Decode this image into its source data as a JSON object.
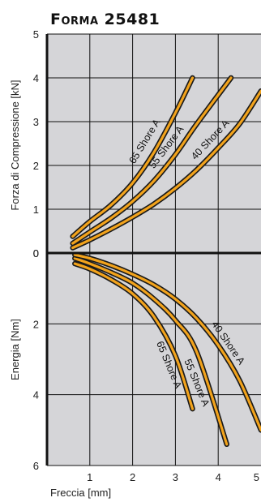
{
  "colors": {
    "panel": "#d5d5d8",
    "grid": "#111111",
    "curve": "#f2a31c",
    "outline": "#1a1a1a"
  },
  "chart_data": [
    {
      "type": "line",
      "title": "Forma 25481",
      "xlabel": "Freccia  [mm]",
      "ylabel": "Forza di Compressione [kN]",
      "xlim": [
        0,
        5
      ],
      "ylim": [
        0,
        5
      ],
      "x_ticks": [
        "1",
        "2",
        "3",
        "4",
        "5"
      ],
      "y_ticks": [
        "0",
        "1",
        "2",
        "3",
        "4",
        "5"
      ],
      "grid": true,
      "series": [
        {
          "name": "65 Shore A",
          "x": [
            0.6,
            1,
            1.5,
            2,
            2.5,
            3,
            3.4
          ],
          "y": [
            0.38,
            0.72,
            1.1,
            1.6,
            2.3,
            3.2,
            4.0
          ]
        },
        {
          "name": "55 Shore A",
          "x": [
            0.6,
            1,
            1.5,
            2,
            2.5,
            3,
            3.5,
            4.3
          ],
          "y": [
            0.22,
            0.48,
            0.8,
            1.18,
            1.65,
            2.25,
            2.95,
            4.0
          ]
        },
        {
          "name": "40 Shore A",
          "x": [
            0.6,
            1,
            1.5,
            2,
            2.5,
            3,
            3.5,
            4,
            4.5,
            5.0
          ],
          "y": [
            0.12,
            0.3,
            0.55,
            0.82,
            1.12,
            1.48,
            1.9,
            2.4,
            2.95,
            3.7
          ]
        }
      ]
    },
    {
      "type": "line",
      "title": "",
      "xlabel": "Freccia  [mm]",
      "ylabel": "Energia [Nm]",
      "xlim": [
        0,
        5
      ],
      "ylim": [
        0,
        6
      ],
      "y_inverted": true,
      "y_ticks": [
        "0",
        "2",
        "4",
        "6"
      ],
      "grid": true,
      "series": [
        {
          "name": "65 Shore A",
          "x": [
            0.65,
            1,
            1.5,
            2,
            2.5,
            3,
            3.4
          ],
          "y": [
            0.3,
            0.45,
            0.75,
            1.15,
            1.8,
            2.9,
            4.4
          ]
        },
        {
          "name": "55 Shore A",
          "x": [
            0.65,
            1,
            1.5,
            2,
            2.5,
            3,
            3.5,
            4.2
          ],
          "y": [
            0.15,
            0.3,
            0.55,
            0.85,
            1.3,
            1.9,
            2.8,
            5.4
          ]
        },
        {
          "name": "40 Shore A",
          "x": [
            0.65,
            1,
            1.5,
            2,
            2.5,
            3,
            3.5,
            4,
            4.5,
            5.0
          ],
          "y": [
            0.05,
            0.15,
            0.35,
            0.6,
            0.9,
            1.3,
            1.85,
            2.6,
            3.6,
            5.0
          ]
        }
      ]
    }
  ]
}
